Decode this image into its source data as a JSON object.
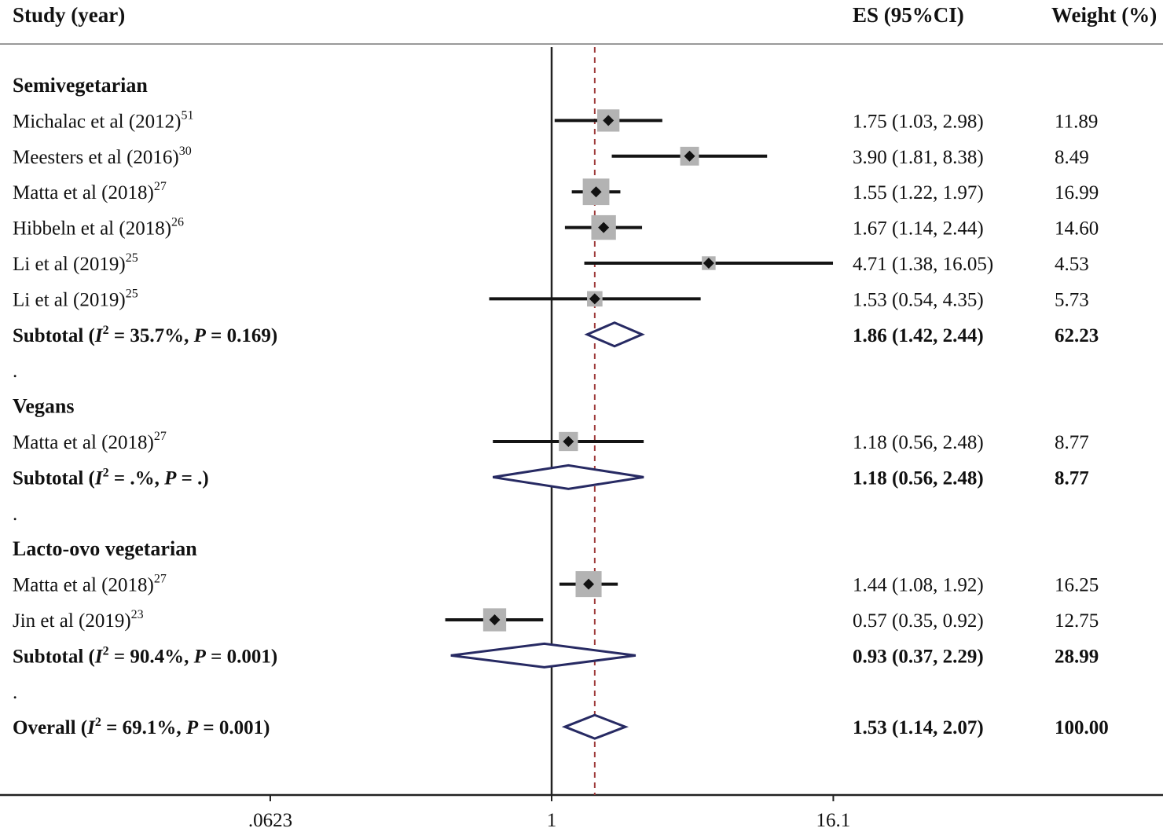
{
  "header": {
    "study": "Study (year)",
    "es": "ES (95%CI)",
    "weight": "Weight (%)"
  },
  "axis": {
    "ticks": [
      {
        "label": ".0623",
        "value": 0.0623
      },
      {
        "label": "1",
        "value": 1
      },
      {
        "label": "16.1",
        "value": 16.1
      }
    ],
    "ref_line_value": 1,
    "dashed_line_value": 1.53
  },
  "colors": {
    "text": "#111111",
    "ci_line": "#141414",
    "weight_square": "#b3b3b3",
    "marker": "#111111",
    "diamond_stroke": "#272a63",
    "dashed_line": "#9e3a3a",
    "separator": "#999999",
    "axis_line": "#222222"
  },
  "chart_data": {
    "type": "forest",
    "x_scale": "log10",
    "xlim": [
      0.0623,
      16.1
    ],
    "rows": [
      {
        "kind": "group",
        "label": "Semivegetarian"
      },
      {
        "kind": "study",
        "label": "Michalac et al (2012)",
        "sup": "51",
        "es": 1.75,
        "lo": 1.03,
        "hi": 2.98,
        "es_text": "1.75 (1.03, 2.98)",
        "weight": 11.89,
        "weight_text": "11.89"
      },
      {
        "kind": "study",
        "label": "Meesters et al (2016)",
        "sup": "30",
        "es": 3.9,
        "lo": 1.81,
        "hi": 8.38,
        "es_text": "3.90 (1.81, 8.38)",
        "weight": 8.49,
        "weight_text": "8.49"
      },
      {
        "kind": "study",
        "label": "Matta et al (2018)",
        "sup": "27",
        "es": 1.55,
        "lo": 1.22,
        "hi": 1.97,
        "es_text": "1.55 (1.22, 1.97)",
        "weight": 16.99,
        "weight_text": "16.99"
      },
      {
        "kind": "study",
        "label": "Hibbeln et al (2018)",
        "sup": "26",
        "es": 1.67,
        "lo": 1.14,
        "hi": 2.44,
        "es_text": "1.67 (1.14, 2.44)",
        "weight": 14.6,
        "weight_text": "14.60"
      },
      {
        "kind": "study",
        "label": "Li et al (2019)",
        "sup": "25",
        "es": 4.71,
        "lo": 1.38,
        "hi": 16.05,
        "es_text": "4.71 (1.38, 16.05)",
        "weight": 4.53,
        "weight_text": "4.53"
      },
      {
        "kind": "study",
        "label": "Li et al (2019)",
        "sup": "25",
        "es": 1.53,
        "lo": 0.54,
        "hi": 4.35,
        "es_text": "1.53 (0.54, 4.35)",
        "weight": 5.73,
        "weight_text": "5.73"
      },
      {
        "kind": "subtotal",
        "i2": "35.7%",
        "p": "0.169",
        "es": 1.86,
        "lo": 1.42,
        "hi": 2.44,
        "es_text": "1.86 (1.42, 2.44)",
        "weight_text": "62.23"
      },
      {
        "kind": "dot",
        "label": "."
      },
      {
        "kind": "group",
        "label": "Vegans"
      },
      {
        "kind": "study",
        "label": "Matta et al (2018)",
        "sup": "27",
        "es": 1.18,
        "lo": 0.56,
        "hi": 2.48,
        "es_text": "1.18 (0.56, 2.48)",
        "weight": 8.77,
        "weight_text": "8.77"
      },
      {
        "kind": "subtotal",
        "i2": ".%",
        "p": ".",
        "es": 1.18,
        "lo": 0.56,
        "hi": 2.48,
        "es_text": "1.18 (0.56, 2.48)",
        "weight_text": "8.77"
      },
      {
        "kind": "dot",
        "label": "."
      },
      {
        "kind": "group",
        "label": "Lacto-ovo vegetarian"
      },
      {
        "kind": "study",
        "label": "Matta et al (2018)",
        "sup": "27",
        "es": 1.44,
        "lo": 1.08,
        "hi": 1.92,
        "es_text": "1.44 (1.08, 1.92)",
        "weight": 16.25,
        "weight_text": "16.25"
      },
      {
        "kind": "study",
        "label": "Jin et al (2019)",
        "sup": "23",
        "es": 0.57,
        "lo": 0.35,
        "hi": 0.92,
        "es_text": "0.57 (0.35, 0.92)",
        "weight": 12.75,
        "weight_text": "12.75"
      },
      {
        "kind": "subtotal",
        "i2": "90.4%",
        "p": "0.001",
        "es": 0.93,
        "lo": 0.37,
        "hi": 2.29,
        "es_text": "0.93 (0.37, 2.29)",
        "weight_text": "28.99"
      },
      {
        "kind": "dot",
        "label": "."
      },
      {
        "kind": "overall",
        "i2": "69.1%",
        "p": "0.001",
        "es": 1.53,
        "lo": 1.14,
        "hi": 2.07,
        "es_text": "1.53 (1.14, 2.07)",
        "weight_text": "100.00"
      }
    ]
  }
}
